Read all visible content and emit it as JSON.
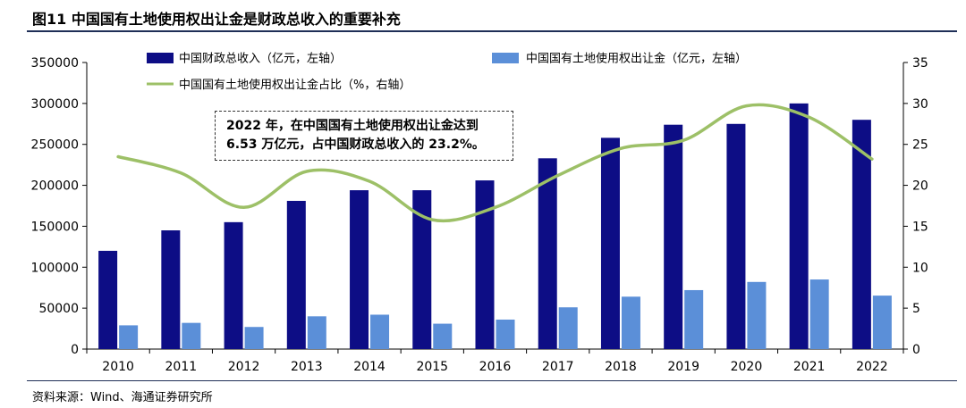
{
  "figure": {
    "title": "图11 中国国有土地使用权出让金是财政总收入的重要补充",
    "source": "资料来源：Wind、海通证券研究所"
  },
  "annotation": {
    "line1": "2022 年，在中国国有土地使用权出让金达到",
    "line2": "6.53 万亿元，占中国财政总收入的 23.2%。"
  },
  "colors": {
    "revenue": "#0d0d85",
    "land": "#5b8fd8",
    "share": "#9dc067",
    "rule": "#1f2f57"
  },
  "chart_data": {
    "type": "bar",
    "categories": [
      "2010",
      "2011",
      "2012",
      "2013",
      "2014",
      "2015",
      "2016",
      "2017",
      "2018",
      "2019",
      "2020",
      "2021",
      "2022"
    ],
    "series": [
      {
        "name": "中国财政总收入（亿元，左轴）",
        "type": "bar",
        "axis": "left",
        "values": [
          120000,
          145000,
          155000,
          181000,
          194000,
          194000,
          206000,
          233000,
          258000,
          274000,
          275000,
          300000,
          280000
        ]
      },
      {
        "name": "中国国有土地使用权出让金（亿元，左轴）",
        "type": "bar",
        "axis": "left",
        "values": [
          29000,
          32000,
          27000,
          40000,
          42000,
          31000,
          36000,
          51000,
          64000,
          72000,
          82000,
          85000,
          65300
        ]
      },
      {
        "name": "中国国有土地使用权出让金占比（%，右轴）",
        "type": "line",
        "axis": "right",
        "values": [
          23.5,
          21.5,
          17.3,
          21.7,
          20.5,
          15.8,
          17.3,
          21.2,
          24.5,
          25.5,
          29.7,
          28.3,
          23.2
        ]
      }
    ],
    "ylim_left": [
      0,
      350000
    ],
    "ylim_right": [
      0,
      35
    ],
    "yticks_left": [
      "0",
      "50000",
      "100000",
      "150000",
      "200000",
      "250000",
      "300000",
      "350000"
    ],
    "yticks_right": [
      "0",
      "5",
      "10",
      "15",
      "20",
      "25",
      "30",
      "35"
    ],
    "legend_position": "top",
    "grid": false
  }
}
